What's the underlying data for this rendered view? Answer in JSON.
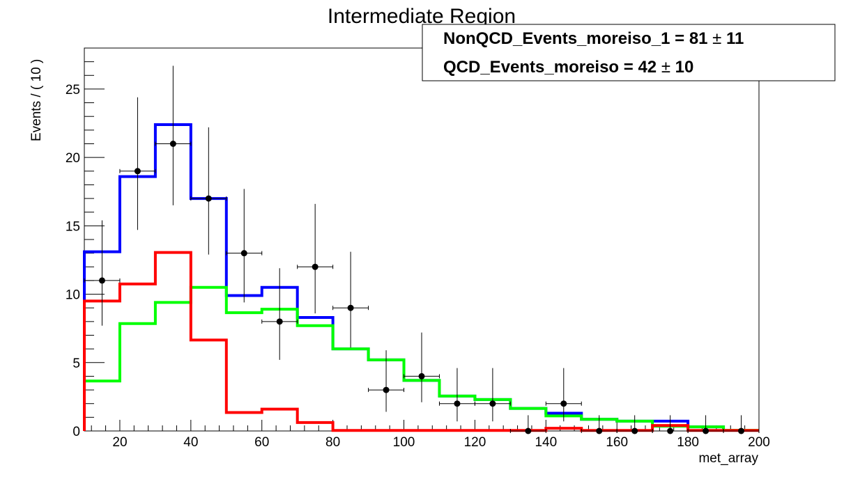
{
  "chart_data": {
    "type": "histogram",
    "title": "Intermediate Region",
    "xlabel": "met_array",
    "ylabel": "Events / ( 10 )",
    "xlim": [
      10,
      200
    ],
    "ylim": [
      0,
      28
    ],
    "x_ticks": [
      20,
      40,
      60,
      80,
      100,
      120,
      140,
      160,
      180,
      200
    ],
    "y_ticks": [
      0,
      5,
      10,
      15,
      20,
      25
    ],
    "grid": false,
    "legend_position": "top-right",
    "legend": [
      {
        "name": "NonQCD_Events_moreiso_1",
        "value": "81",
        "error": "11"
      },
      {
        "name": "QCD_Events_moreiso",
        "value": "42",
        "error": "10"
      }
    ],
    "bin_edges": [
      10,
      20,
      30,
      40,
      50,
      60,
      70,
      80,
      90,
      100,
      110,
      120,
      130,
      140,
      150,
      160,
      170,
      180,
      190,
      200
    ],
    "data_points": {
      "x": [
        15,
        25,
        35,
        45,
        55,
        65,
        75,
        85,
        95,
        105,
        115,
        125,
        135,
        145,
        155,
        165,
        175,
        185,
        195
      ],
      "y": [
        11,
        19,
        21,
        17,
        13,
        8,
        12,
        9,
        3,
        4,
        2,
        2,
        0,
        2,
        0,
        0,
        0,
        0,
        0
      ],
      "err_up": [
        4.4,
        5.4,
        5.7,
        5.2,
        4.7,
        3.9,
        4.6,
        4.1,
        2.9,
        3.2,
        2.6,
        2.6,
        1.15,
        2.6,
        1.15,
        1.15,
        1.15,
        1.15,
        1.15
      ],
      "err_down": [
        3.3,
        4.3,
        4.5,
        4.1,
        3.6,
        2.8,
        3.4,
        2.9,
        1.6,
        1.9,
        1.3,
        1.3,
        0,
        1.3,
        0,
        0,
        0,
        0,
        0
      ],
      "x_err": 5,
      "color": "#000000"
    },
    "series": [
      {
        "color": "#0000ff",
        "values": [
          13.1,
          18.6,
          22.4,
          17.0,
          9.9,
          10.5,
          8.3,
          6.0,
          5.2,
          3.7,
          2.55,
          2.3,
          1.65,
          1.3,
          0.85,
          0.72,
          0.72,
          0.3,
          0.05
        ]
      },
      {
        "color": "#00ff00",
        "values": [
          3.65,
          7.85,
          9.4,
          10.5,
          8.65,
          8.9,
          7.7,
          6.0,
          5.2,
          3.7,
          2.55,
          2.3,
          1.65,
          1.1,
          0.85,
          0.72,
          0.35,
          0.3,
          0.05
        ]
      },
      {
        "color": "#ff0000",
        "values": [
          9.5,
          10.75,
          13.05,
          6.65,
          1.35,
          1.6,
          0.62,
          0.04,
          0.04,
          0.04,
          0.04,
          0.04,
          0.04,
          0.2,
          0.04,
          0.04,
          0.4,
          0.04,
          0.04
        ]
      }
    ]
  }
}
